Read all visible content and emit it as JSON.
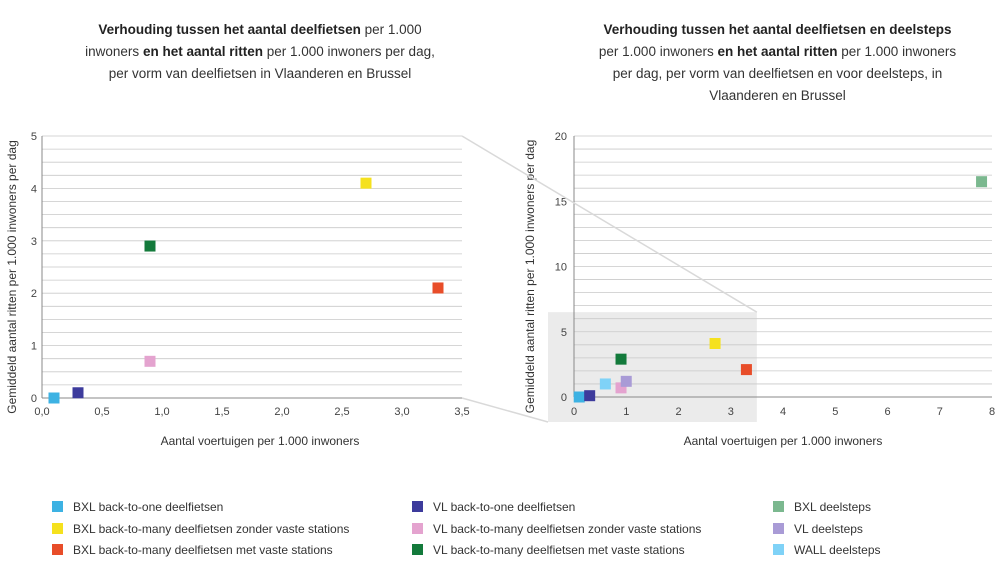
{
  "titles": {
    "left": {
      "l1_b": "Verhouding tussen het aantal deelfietsen",
      "l1_r": " per 1.000",
      "l2_a": "inwoners ",
      "l2_b": "en het aantal ritten",
      "l2_c": " per 1.000 inwoners per dag,",
      "l3": "per vorm van deelfietsen in Vlaanderen en Brussel"
    },
    "right": {
      "l1_b": "Verhouding tussen het aantal deelfietsen en deelsteps",
      "l2_a": "per 1.000 inwoners ",
      "l2_b": "en het aantal ritten",
      "l2_c": " per 1.000 inwoners",
      "l3": "per dag, per vorm van deelfietsen en voor deelsteps, in",
      "l4": "Vlaanderen en Brussel"
    }
  },
  "chart_data": [
    {
      "type": "scatter",
      "title": "Verhouding tussen het aantal deelfietsen per 1.000 inwoners en het aantal ritten per 1.000 inwoners per dag, per vorm van deelfietsen in Vlaanderen en Brussel",
      "xlabel": "Aantal voertuigen per 1.000 inwoners",
      "ylabel": "Gemiddeld aantal ritten per 1.000 inwoners per dag",
      "xlim": [
        0,
        3.5
      ],
      "ylim": [
        0,
        5
      ],
      "xticks": [
        "0,0",
        "0,5",
        "1,0",
        "1,5",
        "2,0",
        "2,5",
        "3,0",
        "3,5"
      ],
      "yticks": [
        "0",
        "1",
        "2",
        "3",
        "4",
        "5"
      ],
      "grid": true,
      "points": [
        {
          "series": "BXL back-to-one deelfietsen",
          "x": 0.1,
          "y": 0.0,
          "color": "#3db2e3"
        },
        {
          "series": "VL back-to-one deelfietsen",
          "x": 0.3,
          "y": 0.1,
          "color": "#3d3b9c"
        },
        {
          "series": "VL back-to-many deelfietsen zonder vaste stations",
          "x": 0.9,
          "y": 0.7,
          "color": "#e4a3cf"
        },
        {
          "series": "VL back-to-many deelfietsen met vaste stations",
          "x": 0.9,
          "y": 2.9,
          "color": "#137a3b"
        },
        {
          "series": "BXL back-to-many deelfietsen zonder vaste stations",
          "x": 2.7,
          "y": 4.1,
          "color": "#f5e11e"
        },
        {
          "series": "BXL back-to-many deelfietsen met vaste stations",
          "x": 3.3,
          "y": 2.1,
          "color": "#e84d29"
        }
      ]
    },
    {
      "type": "scatter",
      "title": "Verhouding tussen het aantal deelfietsen en deelsteps per 1.000 inwoners en het aantal ritten per 1.000 inwoners per dag, per vorm van deelfietsen en voor deelsteps, in Vlaanderen en Brussel",
      "xlabel": "Aantal voertuigen per 1.000 inwoners",
      "ylabel": "Gemiddeld aantal ritten per 1.000 inwoners per dag",
      "xlim": [
        0,
        8
      ],
      "ylim": [
        0,
        20
      ],
      "xticks": [
        "0",
        "1",
        "2",
        "3",
        "4",
        "5",
        "6",
        "7",
        "8"
      ],
      "yticks": [
        "0",
        "5",
        "10",
        "15",
        "20"
      ],
      "grid": true,
      "zoom_region": {
        "x": [
          0,
          3.5
        ],
        "y": [
          0,
          6.5
        ]
      },
      "points": [
        {
          "series": "BXL back-to-one deelfietsen",
          "x": 0.1,
          "y": 0.0,
          "color": "#3db2e3"
        },
        {
          "series": "VL back-to-one deelfietsen",
          "x": 0.3,
          "y": 0.1,
          "color": "#3d3b9c"
        },
        {
          "series": "WALL deelsteps",
          "x": 0.6,
          "y": 1.0,
          "color": "#7fd2f7"
        },
        {
          "series": "VL back-to-many deelfietsen zonder vaste stations",
          "x": 0.9,
          "y": 0.7,
          "color": "#e4a3cf"
        },
        {
          "series": "VL deelsteps",
          "x": 1.0,
          "y": 1.2,
          "color": "#a99bd6"
        },
        {
          "series": "VL back-to-many deelfietsen met vaste stations",
          "x": 0.9,
          "y": 2.9,
          "color": "#137a3b"
        },
        {
          "series": "BXL back-to-many deelfietsen zonder vaste stations",
          "x": 2.7,
          "y": 4.1,
          "color": "#f5e11e"
        },
        {
          "series": "BXL back-to-many deelfietsen met vaste stations",
          "x": 3.3,
          "y": 2.1,
          "color": "#e84d29"
        },
        {
          "series": "BXL deelsteps",
          "x": 7.8,
          "y": 16.5,
          "color": "#7bb88f"
        }
      ]
    }
  ],
  "legend": [
    {
      "label": "BXL back-to-one deelfietsen",
      "color": "#3db2e3"
    },
    {
      "label": "BXL back-to-many deelfietsen zonder vaste stations",
      "color": "#f5e11e"
    },
    {
      "label": "BXL back-to-many deelfietsen met vaste stations",
      "color": "#e84d29"
    },
    {
      "label": "VL back-to-one deelfietsen",
      "color": "#3d3b9c"
    },
    {
      "label": "VL back-to-many deelfietsen zonder vaste stations",
      "color": "#e4a3cf"
    },
    {
      "label": "VL back-to-many deelfietsen met vaste stations",
      "color": "#137a3b"
    },
    {
      "label": "BXL deelsteps",
      "color": "#7bb88f"
    },
    {
      "label": "VL deelsteps",
      "color": "#a99bd6"
    },
    {
      "label": "WALL deelsteps",
      "color": "#7fd2f7"
    }
  ]
}
